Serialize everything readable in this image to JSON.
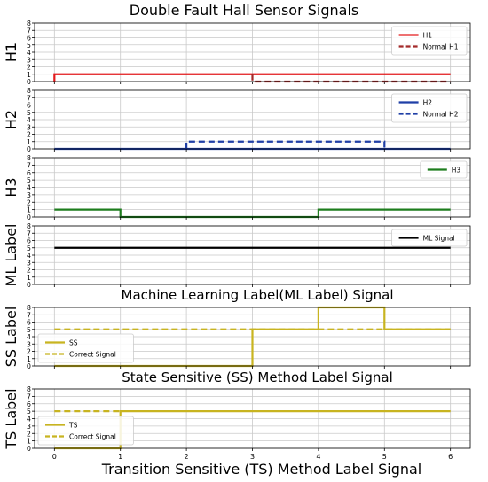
{
  "title": "Double Fault Hall Sensor Signals",
  "xlabel": "Transition Sensitive (TS) Method Label Signal",
  "colors": {
    "red": "#e31a1c",
    "darkred": "#a32a2a",
    "blue": "#1f3fa6",
    "green": "#1e7d1e",
    "black": "#000000",
    "gold": "#c8b420",
    "grid": "#c9c9c9"
  },
  "chart_data": [
    {
      "type": "line",
      "ylabel": "H1",
      "xlim": [
        -0.3,
        6.3
      ],
      "ylim": [
        0,
        8
      ],
      "xticks": [
        0,
        1,
        2,
        3,
        4,
        5,
        6
      ],
      "yticks": [
        0,
        1,
        2,
        3,
        4,
        5,
        6,
        7,
        8
      ],
      "grid": true,
      "legend_position": "top-right",
      "series": [
        {
          "name": "H1",
          "color_key": "red",
          "style": "solid",
          "x": [
            0,
            0,
            3,
            3,
            6
          ],
          "y": [
            0,
            1,
            1,
            1,
            1
          ]
        },
        {
          "name": "Normal H1",
          "color_key": "darkred",
          "style": "dashed",
          "x": [
            3,
            3,
            6
          ],
          "y": [
            1,
            0,
            0
          ]
        }
      ]
    },
    {
      "type": "line",
      "ylabel": "H2",
      "xlim": [
        -0.3,
        6.3
      ],
      "ylim": [
        0,
        8
      ],
      "xticks": [
        0,
        1,
        2,
        3,
        4,
        5,
        6
      ],
      "yticks": [
        0,
        1,
        2,
        3,
        4,
        5,
        6,
        7,
        8
      ],
      "grid": true,
      "legend_position": "top-right",
      "series": [
        {
          "name": "H2",
          "color_key": "blue",
          "style": "solid",
          "x": [
            0,
            6
          ],
          "y": [
            0,
            0
          ]
        },
        {
          "name": "Normal H2",
          "color_key": "blue",
          "style": "dashed",
          "x": [
            2,
            2,
            5,
            5
          ],
          "y": [
            0,
            1,
            1,
            0
          ]
        }
      ]
    },
    {
      "type": "line",
      "ylabel": "H3",
      "xlim": [
        -0.3,
        6.3
      ],
      "ylim": [
        0,
        8
      ],
      "xticks": [
        0,
        1,
        2,
        3,
        4,
        5,
        6
      ],
      "yticks": [
        0,
        1,
        2,
        3,
        4,
        5,
        6,
        7,
        8
      ],
      "grid": true,
      "legend_position": "top-right",
      "series": [
        {
          "name": "H3",
          "color_key": "green",
          "style": "solid",
          "x": [
            0,
            1,
            1,
            4,
            4,
            6
          ],
          "y": [
            1,
            1,
            0,
            0,
            1,
            1
          ]
        }
      ]
    },
    {
      "type": "line",
      "ylabel": "ML Label",
      "xlim": [
        -0.3,
        6.3
      ],
      "ylim": [
        0,
        8
      ],
      "xticks": [
        0,
        1,
        2,
        3,
        4,
        5,
        6
      ],
      "yticks": [
        0,
        1,
        2,
        3,
        4,
        5,
        6,
        7,
        8
      ],
      "grid": true,
      "legend_position": "top-right",
      "subplot_caption": "Machine Learning Label(ML Label) Signal",
      "series": [
        {
          "name": "ML Signal",
          "color_key": "black",
          "style": "solid",
          "x": [
            0,
            6
          ],
          "y": [
            5,
            5
          ]
        }
      ]
    },
    {
      "type": "line",
      "ylabel": "SS Label",
      "xlim": [
        -0.3,
        6.3
      ],
      "ylim": [
        0,
        8
      ],
      "xticks": [
        0,
        1,
        2,
        3,
        4,
        5,
        6
      ],
      "yticks": [
        0,
        1,
        2,
        3,
        4,
        5,
        6,
        7,
        8
      ],
      "grid": true,
      "legend_position": "bottom-left",
      "subplot_caption": "State Sensitive (SS) Method Label Signal",
      "series": [
        {
          "name": "SS",
          "color_key": "gold",
          "style": "solid",
          "x": [
            0,
            3,
            3,
            4,
            4,
            5,
            5,
            6
          ],
          "y": [
            0,
            0,
            5,
            5,
            8,
            8,
            5,
            5
          ]
        },
        {
          "name": "Correct Signal",
          "color_key": "gold",
          "style": "dashed",
          "x": [
            0,
            6
          ],
          "y": [
            5,
            5
          ]
        }
      ]
    },
    {
      "type": "line",
      "ylabel": "TS Label",
      "xlim": [
        -0.3,
        6.3
      ],
      "ylim": [
        0,
        8
      ],
      "xticks": [
        0,
        1,
        2,
        3,
        4,
        5,
        6
      ],
      "yticks": [
        0,
        1,
        2,
        3,
        4,
        5,
        6,
        7,
        8
      ],
      "grid": true,
      "legend_position": "bottom-left",
      "xtick_labels_visible": true,
      "series": [
        {
          "name": "TS",
          "color_key": "gold",
          "style": "solid",
          "x": [
            0,
            1,
            1,
            6
          ],
          "y": [
            0,
            0,
            5,
            5
          ]
        },
        {
          "name": "Correct Signal",
          "color_key": "gold",
          "style": "dashed",
          "x": [
            0,
            1
          ],
          "y": [
            5,
            5
          ]
        }
      ]
    }
  ]
}
